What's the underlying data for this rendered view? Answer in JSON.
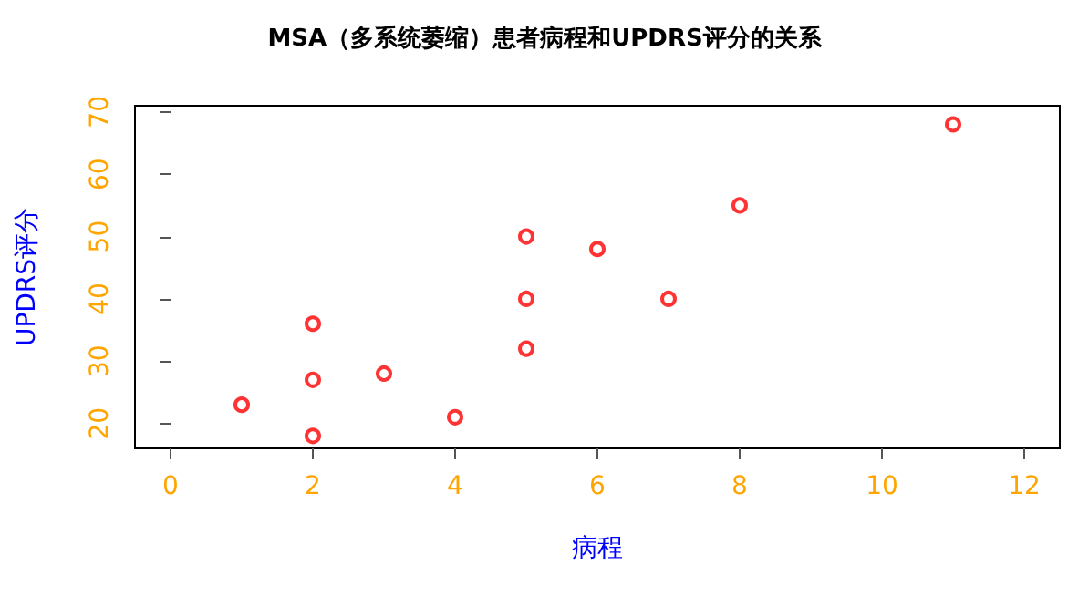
{
  "chart_data": {
    "type": "scatter",
    "title": "MSA（多系统萎缩）患者病程和UPDRS评分的关系",
    "xlabel": "病程",
    "ylabel": "UPDRS评分",
    "x": [
      1,
      2,
      2,
      2,
      3,
      4,
      5,
      5,
      5,
      6,
      7,
      8,
      11
    ],
    "values": [
      23,
      18,
      27,
      36,
      28,
      21,
      32,
      40,
      50,
      48,
      40,
      55,
      68
    ],
    "color": "#ff0000",
    "marker": "circle",
    "grid": false,
    "xlim": [
      -0.5,
      12.5
    ],
    "ylim": [
      16,
      71
    ],
    "xticks": [
      0,
      2,
      4,
      6,
      8,
      10,
      12
    ],
    "yticks": [
      20,
      30,
      40,
      50,
      60,
      70
    ]
  }
}
